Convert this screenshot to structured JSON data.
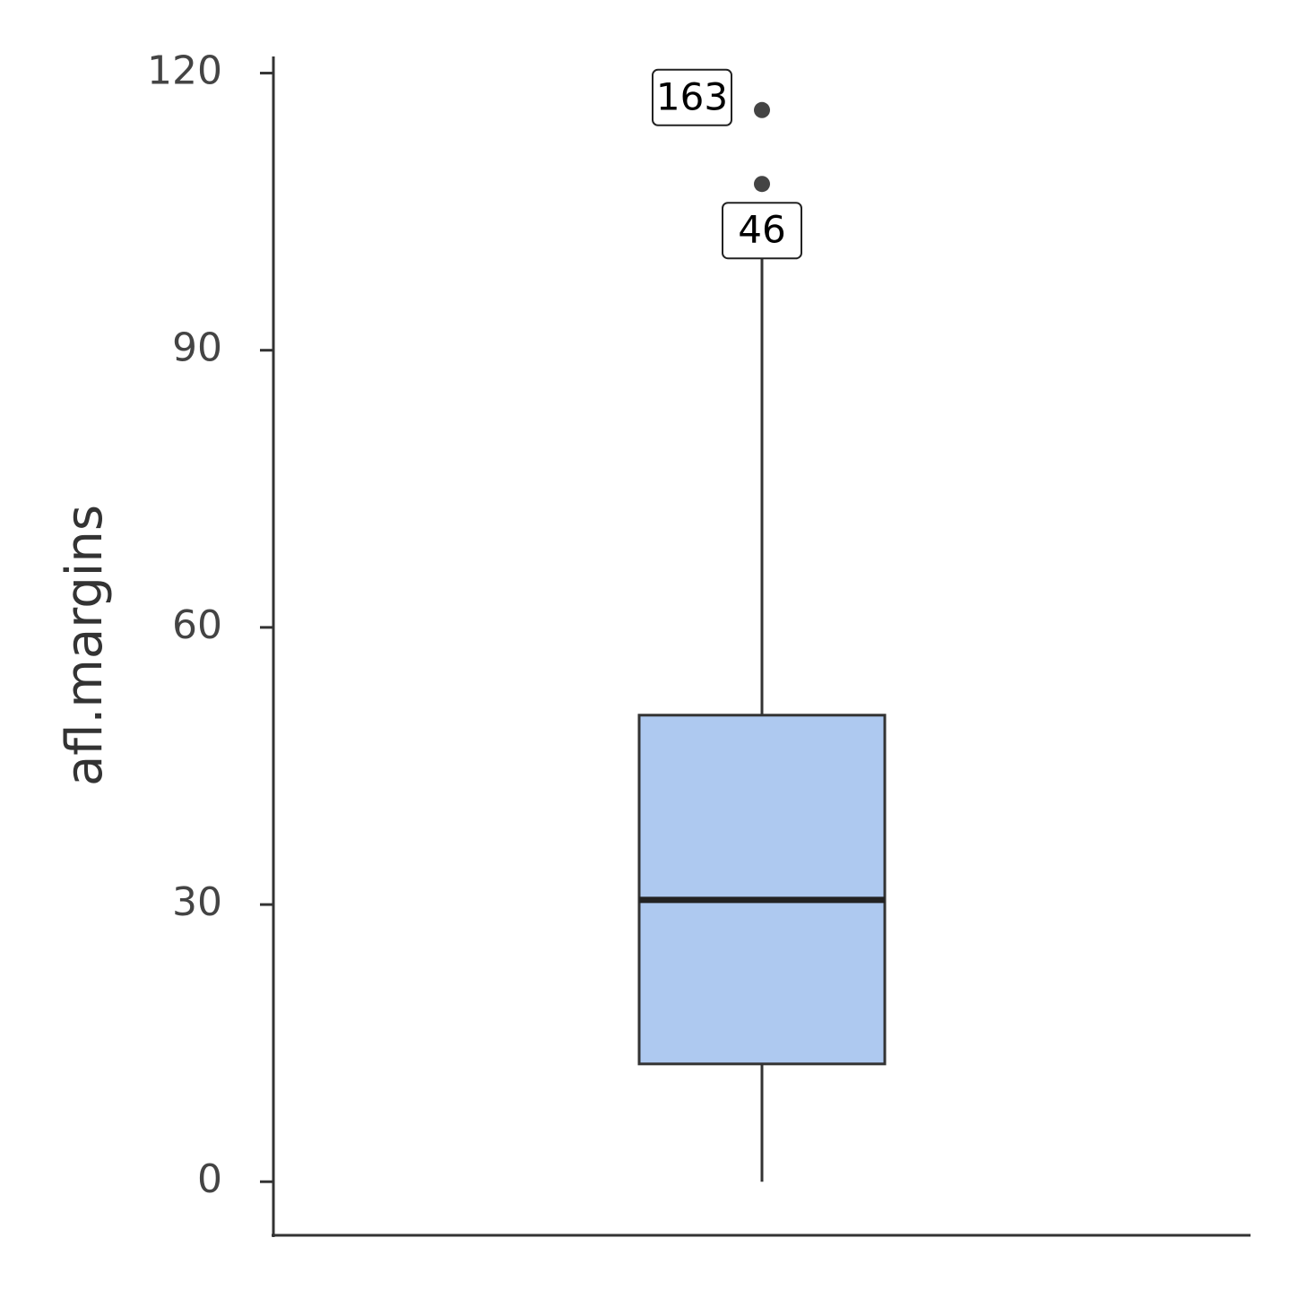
{
  "chart_data": {
    "type": "box",
    "y_label": "afl.margins",
    "box": {
      "min": 0,
      "q1": 12.75,
      "median": 30.5,
      "q3": 50.5,
      "max": 100
    },
    "outliers": [
      116,
      108
    ],
    "outlier_labels": [
      "163",
      "46"
    ],
    "color": "#aec9f0",
    "ylim": [
      -5.8,
      121.8
    ],
    "yticks": [
      0,
      30,
      60,
      90,
      120
    ]
  }
}
